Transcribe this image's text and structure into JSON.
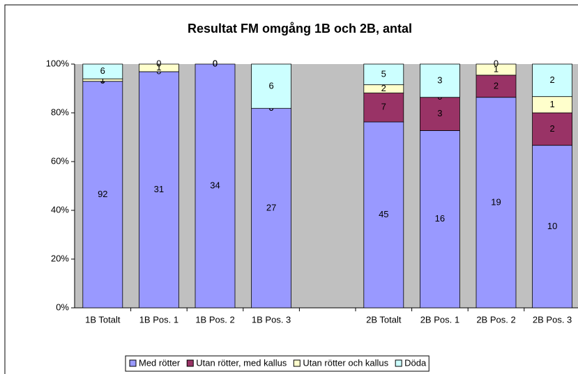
{
  "chart_data": {
    "type": "stacked_bar_percent",
    "title": "Resultat FM omgång 1B och 2B, antal",
    "categories": [
      "1B Totalt",
      "1B Pos. 1",
      "1B Pos. 2",
      "1B Pos. 3",
      null,
      "2B Totalt",
      "2B Pos. 1",
      "2B Pos. 2",
      "2B Pos. 3"
    ],
    "series": [
      {
        "name": "Med rötter",
        "color": "#9999ff",
        "values": [
          92,
          31,
          34,
          27,
          null,
          45,
          16,
          19,
          10
        ]
      },
      {
        "name": "Utan rötter, med kallus",
        "color": "#993366",
        "values": [
          0,
          0,
          0,
          0,
          null,
          7,
          3,
          2,
          2
        ]
      },
      {
        "name": "Utan rötter och kallus",
        "color": "#ffffcc",
        "values": [
          1,
          1,
          0,
          0,
          null,
          2,
          0,
          1,
          1
        ]
      },
      {
        "name": "Döda",
        "color": "#ccffff",
        "values": [
          6,
          0,
          0,
          6,
          null,
          5,
          3,
          0,
          2
        ]
      }
    ],
    "ylim": [
      0,
      100
    ],
    "yticks": [
      {
        "value": 0,
        "label": "0%"
      },
      {
        "value": 20,
        "label": "20%"
      },
      {
        "value": 40,
        "label": "40%"
      },
      {
        "value": 60,
        "label": "60%"
      },
      {
        "value": 80,
        "label": "80%"
      },
      {
        "value": 100,
        "label": "100%"
      }
    ],
    "plot_background": "#c0c0c0",
    "legend": "bottom"
  }
}
